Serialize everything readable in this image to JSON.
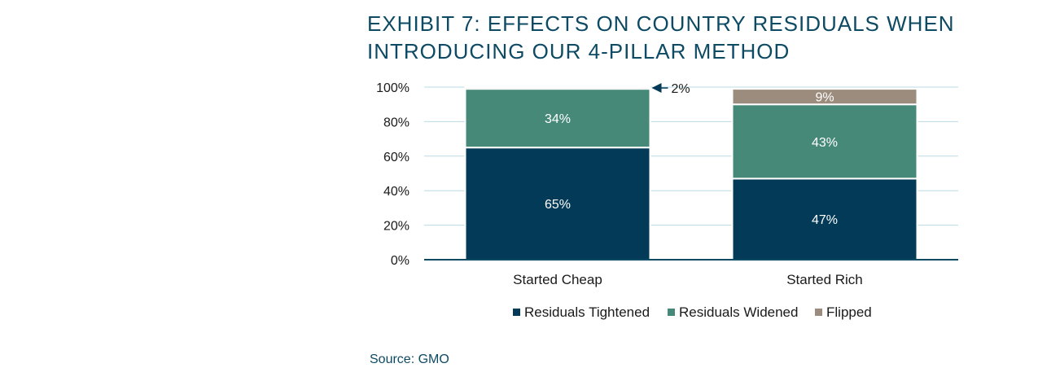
{
  "title_lines": [
    "EXHIBIT 7: EFFECTS ON COUNTRY RESIDUALS WHEN",
    "INTRODUCING OUR 4-PILLAR METHOD"
  ],
  "source": "Source: GMO",
  "colors": {
    "tightened": "#033a57",
    "widened": "#468978",
    "flipped": "#9c8c7d",
    "grid": "#b9dce3",
    "axis": "#0d4a63",
    "text": "#1a1a1a",
    "title": "#0d4a63"
  },
  "chart_data": {
    "type": "bar",
    "stacked": true,
    "title": "EXHIBIT 7: EFFECTS ON COUNTRY RESIDUALS WHEN INTRODUCING OUR 4-PILLAR METHOD",
    "categories": [
      "Started Cheap",
      "Started Rich"
    ],
    "series": [
      {
        "name": "Residuals Tightened",
        "values": [
          65,
          47
        ],
        "labels": [
          "65%",
          "47%"
        ]
      },
      {
        "name": "Residuals Widened",
        "values": [
          34,
          43
        ],
        "labels": [
          "34%",
          "43%"
        ]
      },
      {
        "name": "Flipped",
        "values": [
          2,
          9
        ],
        "labels": [
          "2%",
          "9%"
        ]
      }
    ],
    "ylim": [
      0,
      100
    ],
    "yticks": [
      0,
      20,
      40,
      60,
      80,
      100
    ],
    "ytick_labels": [
      "0%",
      "20%",
      "40%",
      "60%",
      "80%",
      "100%"
    ],
    "annotation": {
      "text": "2%",
      "category": "Started Cheap",
      "series": "Flipped"
    },
    "xlabel": "",
    "ylabel": "",
    "grid": true,
    "legend_position": "bottom"
  }
}
